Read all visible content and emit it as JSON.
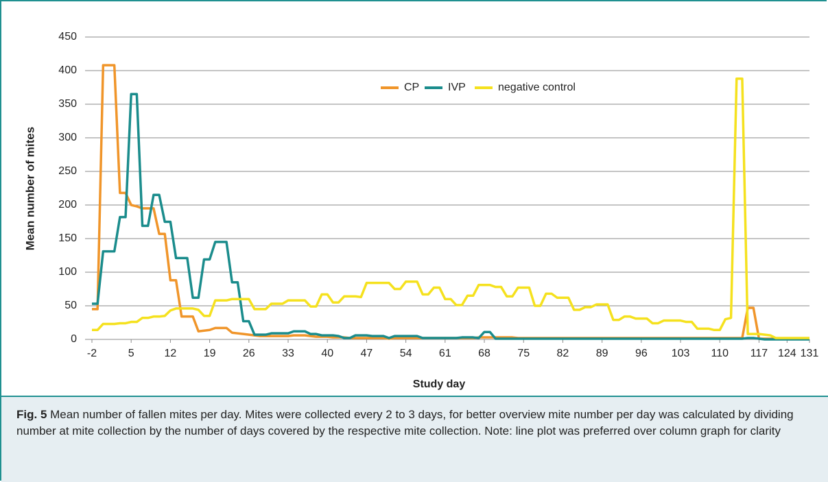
{
  "chart_data": {
    "type": "line",
    "ylabel": "Mean number of mites",
    "xlabel": "Study day",
    "categories": [
      "-2",
      null,
      null,
      null,
      null,
      null,
      null,
      "5",
      null,
      null,
      null,
      null,
      null,
      null,
      "12",
      null,
      null,
      null,
      null,
      null,
      null,
      "19",
      null,
      null,
      null,
      null,
      null,
      null,
      "26",
      null,
      null,
      null,
      null,
      null,
      null,
      "33",
      null,
      null,
      null,
      null,
      null,
      null,
      "40",
      null,
      null,
      null,
      null,
      null,
      null,
      "47",
      null,
      null,
      null,
      null,
      null,
      null,
      "54",
      null,
      null,
      null,
      null,
      null,
      null,
      "61",
      null,
      null,
      null,
      null,
      null,
      null,
      "68",
      null,
      null,
      null,
      null,
      null,
      null,
      "75",
      null,
      null,
      null,
      null,
      null,
      null,
      "82",
      null,
      null,
      null,
      null,
      null,
      null,
      "89",
      null,
      null,
      null,
      null,
      null,
      null,
      "96",
      null,
      null,
      null,
      null,
      null,
      null,
      "103",
      null,
      null,
      null,
      null,
      null,
      null,
      "110",
      null,
      null,
      null,
      null,
      null,
      null,
      "117",
      null,
      null,
      null,
      null,
      "124",
      null,
      null,
      null,
      "131"
    ],
    "series": [
      {
        "name": "CP",
        "color": "#f0952a",
        "values": [
          45,
          45,
          408,
          408,
          408,
          218,
          218,
          200,
          198,
          195,
          195,
          195,
          157,
          157,
          88,
          88,
          34,
          34,
          34,
          12,
          13,
          14,
          17,
          17,
          17,
          10,
          9,
          8,
          7,
          6,
          5,
          5,
          5,
          5,
          5,
          5,
          6,
          6,
          6,
          5,
          4,
          4,
          4,
          3,
          3,
          3,
          2,
          2,
          2,
          2,
          2,
          2,
          2,
          1,
          2,
          2,
          2,
          2,
          2,
          2,
          2,
          2,
          2,
          2,
          2,
          2,
          2,
          2,
          2,
          3,
          3,
          3,
          3,
          3,
          3,
          3,
          2,
          2,
          2,
          2,
          2,
          2,
          2,
          2,
          2,
          2,
          2,
          2,
          2,
          2,
          2,
          2,
          2,
          2,
          2,
          2,
          2,
          2,
          2,
          2,
          2,
          2,
          2,
          2,
          2,
          2,
          2,
          2,
          2,
          2,
          2,
          2,
          2,
          2,
          2,
          2,
          2,
          47,
          47,
          1,
          1,
          1,
          1,
          1,
          1,
          1,
          1,
          1,
          1
        ]
      },
      {
        "name": "IVP",
        "color": "#1a8c8c",
        "values": [
          53,
          53,
          131,
          131,
          131,
          182,
          182,
          365,
          365,
          169,
          169,
          215,
          215,
          175,
          175,
          121,
          121,
          121,
          62,
          62,
          119,
          119,
          145,
          145,
          145,
          85,
          85,
          27,
          27,
          7,
          7,
          7,
          9,
          9,
          9,
          9,
          12,
          12,
          12,
          8,
          8,
          6,
          6,
          6,
          5,
          2,
          2,
          6,
          6,
          6,
          5,
          5,
          5,
          2,
          5,
          5,
          5,
          5,
          5,
          2,
          2,
          2,
          2,
          2,
          2,
          2,
          3,
          3,
          3,
          2,
          11,
          11,
          1,
          1,
          1,
          1,
          1,
          1,
          1,
          1,
          1,
          1,
          1,
          1,
          1,
          1,
          1,
          1,
          1,
          1,
          1,
          1,
          1,
          1,
          1,
          1,
          1,
          1,
          1,
          1,
          1,
          1,
          1,
          1,
          1,
          1,
          1,
          1,
          1,
          1,
          1,
          1,
          1,
          1,
          1,
          1,
          1,
          2,
          2,
          1,
          0,
          0,
          0,
          0,
          0,
          0,
          0,
          0,
          0
        ]
      },
      {
        "name": "negative control",
        "color": "#f5e11e",
        "values": [
          14,
          14,
          23,
          23,
          23,
          24,
          24,
          26,
          26,
          32,
          32,
          34,
          34,
          35,
          43,
          46,
          46,
          46,
          46,
          44,
          35,
          35,
          58,
          58,
          58,
          60,
          60,
          60,
          60,
          45,
          45,
          45,
          53,
          53,
          53,
          58,
          58,
          58,
          58,
          49,
          49,
          67,
          67,
          55,
          55,
          64,
          64,
          64,
          63,
          84,
          84,
          84,
          84,
          84,
          75,
          75,
          86,
          86,
          86,
          67,
          67,
          77,
          77,
          60,
          60,
          51,
          51,
          65,
          65,
          81,
          81,
          81,
          78,
          78,
          64,
          64,
          77,
          77,
          77,
          50,
          50,
          68,
          68,
          62,
          62,
          62,
          44,
          44,
          48,
          48,
          52,
          52,
          52,
          29,
          29,
          34,
          34,
          31,
          31,
          31,
          24,
          24,
          28,
          28,
          28,
          28,
          26,
          26,
          16,
          16,
          16,
          14,
          14,
          30,
          32,
          388,
          388,
          8,
          8,
          8,
          7,
          6,
          2,
          2,
          2,
          2,
          2,
          2,
          2
        ]
      }
    ],
    "ylim": [
      0,
      450
    ],
    "yticks": [
      0,
      50,
      100,
      150,
      200,
      250,
      300,
      350,
      400,
      450
    ],
    "grid": true,
    "legend": "upper center"
  },
  "caption": {
    "label": "Fig. 5",
    "text": "Mean number of fallen mites per day. Mites were collected every 2 to 3 days, for better overview mite number per day was calculated by dividing number at mite collection by the number of days covered by the respective mite collection. Note: line plot was preferred over column graph for clarity"
  }
}
